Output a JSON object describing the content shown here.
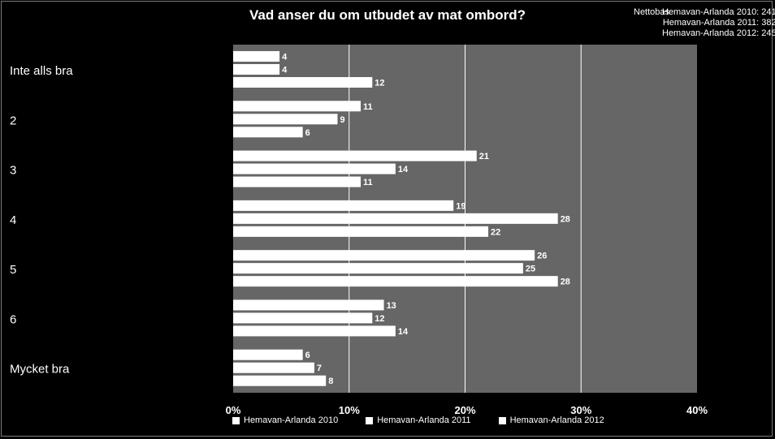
{
  "chart_data": {
    "type": "bar",
    "orientation": "horizontal",
    "title": "Vad anser du om utbudet av mat ombord?",
    "categories": [
      "Inte alls bra",
      "2",
      "3",
      "4",
      "5",
      "6",
      "Mycket bra"
    ],
    "series": [
      {
        "name": "Hemavan-Arlanda 2010",
        "values": [
          4,
          11,
          21,
          19,
          26,
          13,
          6
        ]
      },
      {
        "name": "Hemavan-Arlanda 2011",
        "values": [
          4,
          9,
          14,
          28,
          25,
          12,
          7
        ]
      },
      {
        "name": "Hemavan-Arlanda 2012",
        "values": [
          12,
          6,
          11,
          22,
          28,
          14,
          8
        ]
      }
    ],
    "xlim": [
      0,
      40
    ],
    "xticks": [
      "0%",
      "10%",
      "20%",
      "30%",
      "40%"
    ],
    "grid": true,
    "legend_position": "bottom",
    "bar_color": "#ffffff",
    "plot_background": "#666666",
    "page_background": "#000000"
  },
  "nettobas": {
    "label": "Nettobas",
    "lines": [
      "Hemavan-Arlanda 2010: 241",
      "Hemavan-Arlanda 2011: 382",
      "Hemavan-Arlanda 2012: 245"
    ]
  }
}
